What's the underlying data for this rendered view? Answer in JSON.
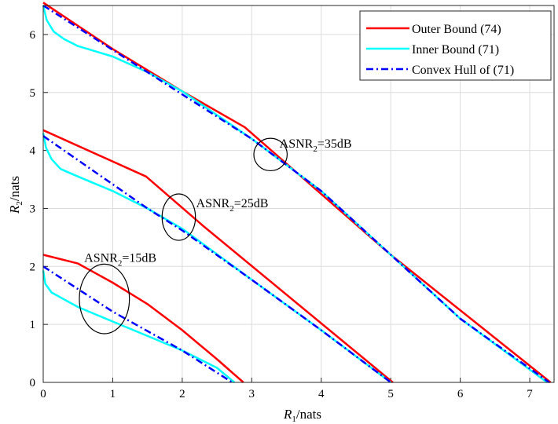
{
  "chart_data": {
    "type": "line",
    "xlabel_main": "R",
    "xlabel_sub": "1",
    "xlabel_unit": "/nats",
    "ylabel_main": "R",
    "ylabel_sub": "2",
    "ylabel_unit": "/nats",
    "xlim": [
      0,
      7.35
    ],
    "ylim": [
      0,
      6.5
    ],
    "xticks": [
      0,
      1,
      2,
      3,
      4,
      5,
      6,
      7
    ],
    "yticks": [
      0,
      1,
      2,
      3,
      4,
      5,
      6
    ],
    "grid": true,
    "legend_position": "top-right",
    "legend": [
      {
        "label": "Outer Bound (74)",
        "color": "#ff0000",
        "dash": "solid"
      },
      {
        "label": "Inner Bound (71)",
        "color": "#00ffff",
        "dash": "solid"
      },
      {
        "label": "Convex Hull of (71)",
        "color": "#0000ff",
        "dash": "dashdot"
      }
    ],
    "series": [
      {
        "color": "#ff0000",
        "dash": "solid",
        "points": [
          [
            0,
            6.55
          ],
          [
            1,
            5.75
          ],
          [
            2,
            5.02
          ],
          [
            2.9,
            4.4
          ],
          [
            5.0,
            2.2
          ],
          [
            7.3,
            0
          ]
        ]
      },
      {
        "color": "#00ffff",
        "dash": "solid",
        "points": [
          [
            0,
            6.5
          ],
          [
            0.05,
            6.25
          ],
          [
            0.15,
            6.05
          ],
          [
            0.3,
            5.92
          ],
          [
            0.5,
            5.8
          ],
          [
            1.0,
            5.62
          ],
          [
            1.5,
            5.35
          ],
          [
            2.0,
            5.02
          ],
          [
            3.0,
            4.2
          ],
          [
            4.0,
            3.3
          ],
          [
            5.0,
            2.2
          ],
          [
            6.0,
            1.1
          ],
          [
            7.25,
            0
          ]
        ]
      },
      {
        "color": "#0000ff",
        "dash": "dashdot",
        "points": [
          [
            0,
            6.5
          ],
          [
            3.0,
            4.2
          ],
          [
            4.0,
            3.3
          ],
          [
            5.0,
            2.2
          ],
          [
            6.0,
            1.1
          ],
          [
            7.28,
            0
          ]
        ]
      },
      {
        "color": "#ff0000",
        "dash": "solid",
        "points": [
          [
            0,
            4.35
          ],
          [
            1.48,
            3.55
          ],
          [
            2.3,
            2.7
          ],
          [
            5.03,
            0
          ]
        ]
      },
      {
        "color": "#00ffff",
        "dash": "solid",
        "points": [
          [
            0,
            4.3
          ],
          [
            0.04,
            4.05
          ],
          [
            0.12,
            3.85
          ],
          [
            0.25,
            3.68
          ],
          [
            0.5,
            3.55
          ],
          [
            1.0,
            3.3
          ],
          [
            1.5,
            3.0
          ],
          [
            2.0,
            2.65
          ],
          [
            3.0,
            1.77
          ],
          [
            4.0,
            0.9
          ],
          [
            5.0,
            0
          ]
        ]
      },
      {
        "color": "#0000ff",
        "dash": "dashdot",
        "points": [
          [
            0,
            4.25
          ],
          [
            1.5,
            3.0
          ],
          [
            2.0,
            2.62
          ],
          [
            3.0,
            1.77
          ],
          [
            4.0,
            0.9
          ],
          [
            5.0,
            0
          ]
        ]
      },
      {
        "color": "#ff0000",
        "dash": "solid",
        "points": [
          [
            0,
            2.2
          ],
          [
            0.5,
            2.05
          ],
          [
            1.0,
            1.72
          ],
          [
            1.5,
            1.35
          ],
          [
            2.0,
            0.9
          ],
          [
            2.5,
            0.4
          ],
          [
            2.88,
            0
          ]
        ]
      },
      {
        "color": "#00ffff",
        "dash": "solid",
        "points": [
          [
            0,
            1.93
          ],
          [
            0.03,
            1.7
          ],
          [
            0.12,
            1.55
          ],
          [
            0.5,
            1.3
          ],
          [
            1.0,
            1.05
          ],
          [
            1.5,
            0.8
          ],
          [
            2.0,
            0.55
          ],
          [
            2.5,
            0.25
          ],
          [
            2.75,
            0
          ]
        ]
      },
      {
        "color": "#0000ff",
        "dash": "dashdot",
        "points": [
          [
            0,
            2.0
          ],
          [
            1.0,
            1.22
          ],
          [
            2.0,
            0.55
          ],
          [
            2.72,
            0
          ]
        ]
      }
    ],
    "annotations": [
      {
        "main": "ASNR",
        "sub": "2",
        "suffix": "=35dB",
        "text_at": [
          3.4,
          4.05
        ],
        "ellipse": {
          "cx": 3.27,
          "cy": 3.93,
          "rx": 0.24,
          "ry": 0.28
        }
      },
      {
        "main": "ASNR",
        "sub": "2",
        "suffix": "=25dB",
        "text_at": [
          2.2,
          3.02
        ],
        "ellipse": {
          "cx": 1.95,
          "cy": 2.85,
          "rx": 0.24,
          "ry": 0.4
        }
      },
      {
        "main": "ASNR",
        "sub": "2",
        "suffix": "=15dB",
        "text_at": [
          0.59,
          2.08
        ],
        "ellipse": {
          "cx": 0.88,
          "cy": 1.44,
          "rx": 0.36,
          "ry": 0.6
        }
      }
    ]
  }
}
